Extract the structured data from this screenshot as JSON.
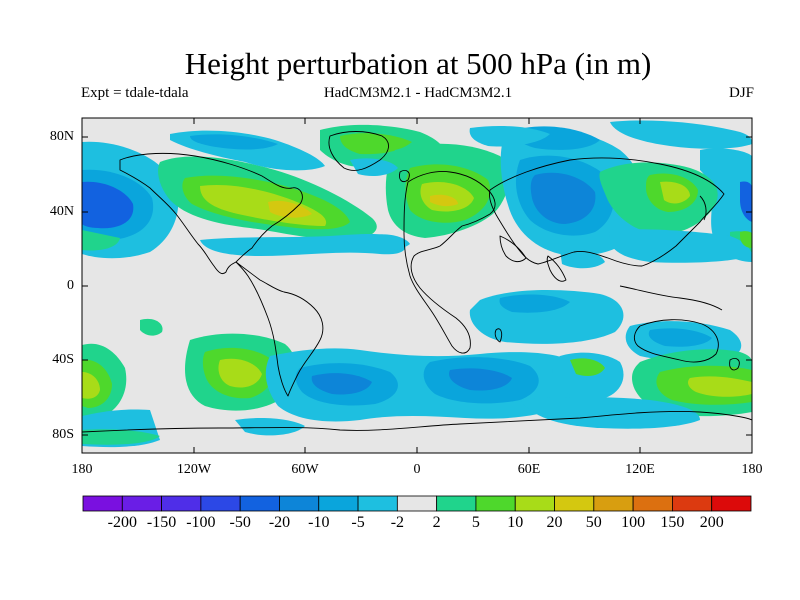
{
  "title": "Height perturbation at 500 hPa (in m)",
  "subtitle_left": "Expt = tdale-tdala",
  "subtitle_center": "HadCM3M2.1 - HadCM3M2.1",
  "subtitle_right": "DJF",
  "lat_ticks": [
    "80N",
    "40N",
    "0",
    "40S",
    "80S"
  ],
  "lon_ticks": [
    "180",
    "120W",
    "60W",
    "0",
    "60E",
    "120E",
    "180"
  ],
  "colorbar": {
    "labels": [
      "-200",
      "-150",
      "-100",
      "-50",
      "-20",
      "-10",
      "-5",
      "-2",
      "2",
      "5",
      "10",
      "20",
      "50",
      "100",
      "150",
      "200"
    ],
    "colors": [
      "#7a10e0",
      "#6a1ee6",
      "#4f2ee8",
      "#2c48e6",
      "#1262e0",
      "#0d85d8",
      "#0aa5dc",
      "#1ebfe0",
      "#e6e6e6",
      "#20d48c",
      "#4ed82c",
      "#a8dc18",
      "#d4c810",
      "#d89e10",
      "#dc7010",
      "#dc3a10",
      "#dc0a0a"
    ]
  },
  "map_colors": {
    "background": "#e6e6e6",
    "neg_weak": "#1ebfe0",
    "neg_mid": "#0aa5dc",
    "neg_strong": "#0d85d8",
    "neg_stronger": "#1262e0",
    "neg_strongest": "#2c48e6",
    "pos_weak": "#20d48c",
    "pos_mid": "#4ed82c",
    "pos_strong": "#a8dc18",
    "pos_stronger": "#d4c810"
  }
}
